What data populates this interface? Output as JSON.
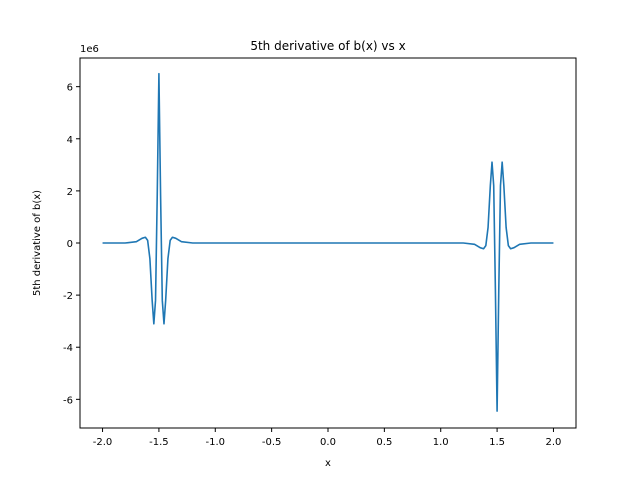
{
  "chart_data": {
    "type": "line",
    "title": "5th derivative of b(x) vs x",
    "xlabel": "x",
    "ylabel": "5th derivative of b(x)",
    "y_offset_label": "1e6",
    "xlim": [
      -2.2,
      2.2
    ],
    "ylim": [
      -7.1,
      7.1
    ],
    "x_ticks": [
      "-2.0",
      "-1.5",
      "-1.0",
      "-0.5",
      "0.0",
      "0.5",
      "1.0",
      "1.5",
      "2.0"
    ],
    "x_tick_values": [
      -2.0,
      -1.5,
      -1.0,
      -0.5,
      0.0,
      0.5,
      1.0,
      1.5,
      2.0
    ],
    "y_ticks": [
      "-6",
      "-4",
      "-2",
      "0",
      "2",
      "4",
      "6"
    ],
    "y_tick_values": [
      -6,
      -4,
      -2,
      0,
      2,
      4,
      6
    ],
    "grid": false,
    "series": [
      {
        "color": "#1f77b4",
        "points": [
          [
            -2.0,
            0.0
          ],
          [
            -1.8,
            0.0
          ],
          [
            -1.7,
            0.05
          ],
          [
            -1.65,
            0.18
          ],
          [
            -1.62,
            0.22
          ],
          [
            -1.6,
            0.1
          ],
          [
            -1.58,
            -0.6
          ],
          [
            -1.56,
            -2.2
          ],
          [
            -1.545,
            -3.1
          ],
          [
            -1.53,
            -2.2
          ],
          [
            -1.515,
            1.8
          ],
          [
            -1.5,
            6.5
          ],
          [
            -1.485,
            1.8
          ],
          [
            -1.47,
            -2.2
          ],
          [
            -1.455,
            -3.1
          ],
          [
            -1.44,
            -2.2
          ],
          [
            -1.42,
            -0.6
          ],
          [
            -1.4,
            0.1
          ],
          [
            -1.38,
            0.22
          ],
          [
            -1.35,
            0.18
          ],
          [
            -1.3,
            0.05
          ],
          [
            -1.2,
            0.0
          ],
          [
            0.0,
            0.0
          ],
          [
            1.2,
            0.0
          ],
          [
            1.3,
            -0.05
          ],
          [
            1.35,
            -0.18
          ],
          [
            1.38,
            -0.22
          ],
          [
            1.4,
            -0.1
          ],
          [
            1.42,
            0.6
          ],
          [
            1.44,
            2.2
          ],
          [
            1.455,
            3.1
          ],
          [
            1.47,
            2.2
          ],
          [
            1.485,
            -1.8
          ],
          [
            1.5,
            -6.45
          ],
          [
            1.515,
            -1.8
          ],
          [
            1.53,
            2.2
          ],
          [
            1.545,
            3.1
          ],
          [
            1.56,
            2.2
          ],
          [
            1.58,
            0.6
          ],
          [
            1.6,
            -0.1
          ],
          [
            1.62,
            -0.22
          ],
          [
            1.65,
            -0.18
          ],
          [
            1.7,
            -0.05
          ],
          [
            1.8,
            0.0
          ],
          [
            2.0,
            0.0
          ]
        ]
      }
    ]
  }
}
